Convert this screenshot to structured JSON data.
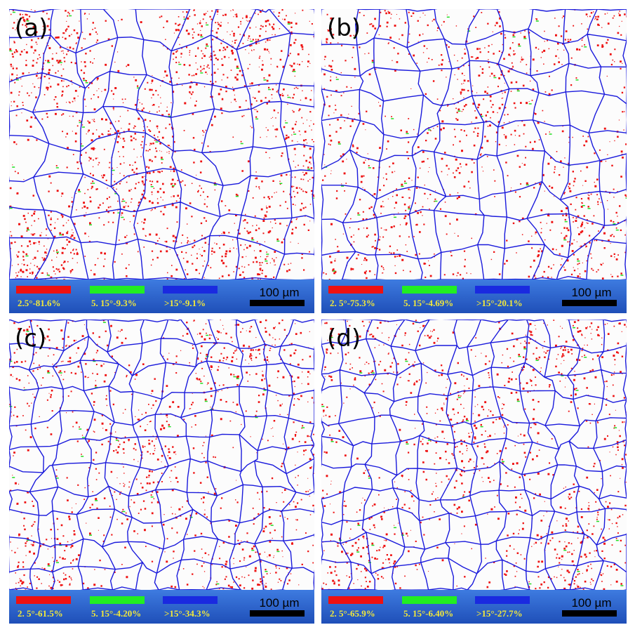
{
  "panels": [
    {
      "label": "(a)",
      "legend": [
        "2.5°-81.6%",
        "5. 15°-9.3%",
        ">15°-9.1%"
      ],
      "scale_bar": "100 µm"
    },
    {
      "label": "(b)",
      "legend": [
        "2. 5°-75.3%",
        "5. 15°-4.69%",
        ">15°-20.1%"
      ],
      "scale_bar": "100 µm"
    },
    {
      "label": "(c)",
      "legend": [
        "2. 5°-61.5%",
        "5. 15°-4.20%",
        ">15°-34.3%"
      ],
      "scale_bar": "100 µm"
    },
    {
      "label": "(d)",
      "legend": [
        "2. 5°-65.9%",
        "5. 15°-6.40%",
        ">15°-27.7%"
      ],
      "scale_bar": "100 µm"
    }
  ]
}
